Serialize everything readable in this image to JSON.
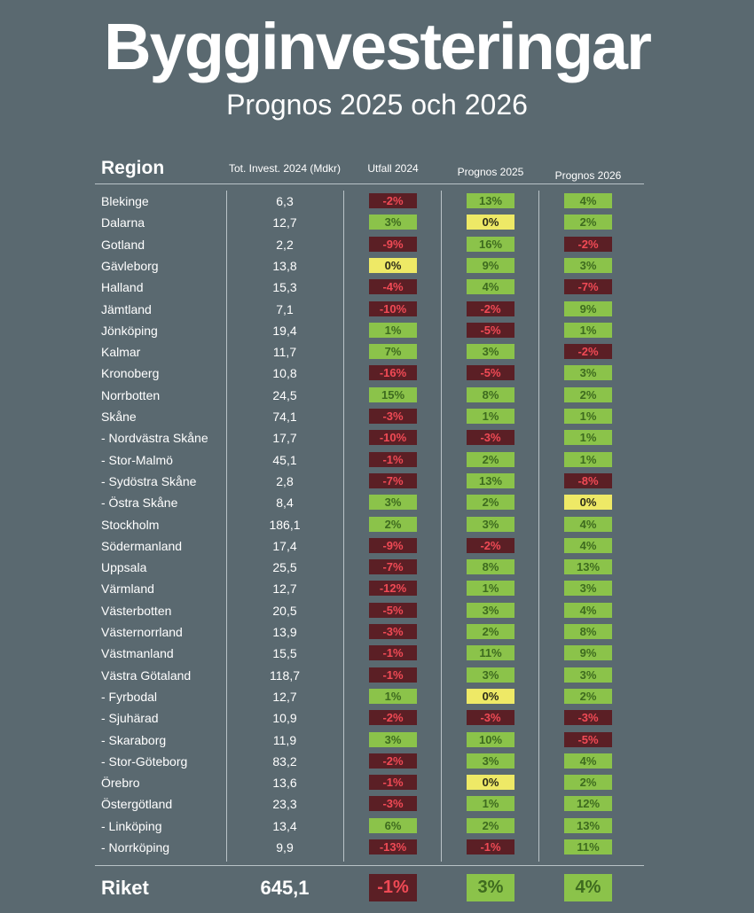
{
  "title": "Bygginvesteringar",
  "subtitle": "Prognos 2025 och 2026",
  "colors": {
    "background": "#5a6970",
    "negative": "#5b1f25",
    "negative_text": "#f04a55",
    "positive": "#8bc34a",
    "positive_text": "#3e6b1f",
    "zero": "#eee966"
  },
  "chart_data": {
    "type": "table",
    "columns": [
      "Region",
      "Tot. Invest. 2024 (Mdkr)",
      "Utfall 2024",
      "Prognos 2025",
      "Prognos 2026"
    ],
    "rows": [
      {
        "region": "Blekinge",
        "total": "6,3",
        "u2024": "-2%",
        "p2025": "13%",
        "p2026": "4%"
      },
      {
        "region": "Dalarna",
        "total": "12,7",
        "u2024": "3%",
        "p2025": "0%",
        "p2026": "2%"
      },
      {
        "region": "Gotland",
        "total": "2,2",
        "u2024": "-9%",
        "p2025": "16%",
        "p2026": "-2%"
      },
      {
        "region": "Gävleborg",
        "total": "13,8",
        "u2024": "0%",
        "p2025": "9%",
        "p2026": "3%"
      },
      {
        "region": "Halland",
        "total": "15,3",
        "u2024": "-4%",
        "p2025": "4%",
        "p2026": "-7%"
      },
      {
        "region": "Jämtland",
        "total": "7,1",
        "u2024": "-10%",
        "p2025": "-2%",
        "p2026": "9%"
      },
      {
        "region": "Jönköping",
        "total": "19,4",
        "u2024": "1%",
        "p2025": "-5%",
        "p2026": "1%"
      },
      {
        "region": "Kalmar",
        "total": "11,7",
        "u2024": "7%",
        "p2025": "3%",
        "p2026": "-2%"
      },
      {
        "region": "Kronoberg",
        "total": "10,8",
        "u2024": "-16%",
        "p2025": "-5%",
        "p2026": "3%"
      },
      {
        "region": "Norrbotten",
        "total": "24,5",
        "u2024": "15%",
        "p2025": "8%",
        "p2026": "2%"
      },
      {
        "region": "Skåne",
        "total": "74,1",
        "u2024": "-3%",
        "p2025": "1%",
        "p2026": "1%"
      },
      {
        "region": "- Nordvästra Skåne",
        "total": "17,7",
        "u2024": "-10%",
        "p2025": "-3%",
        "p2026": "1%"
      },
      {
        "region": "- Stor-Malmö",
        "total": "45,1",
        "u2024": "-1%",
        "p2025": "2%",
        "p2026": "1%"
      },
      {
        "region": "- Sydöstra Skåne",
        "total": "2,8",
        "u2024": "-7%",
        "p2025": "13%",
        "p2026": "-8%"
      },
      {
        "region": "- Östra Skåne",
        "total": "8,4",
        "u2024": "3%",
        "p2025": "2%",
        "p2026": "0%"
      },
      {
        "region": "Stockholm",
        "total": "186,1",
        "u2024": "2%",
        "p2025": "3%",
        "p2026": "4%"
      },
      {
        "region": "Södermanland",
        "total": "17,4",
        "u2024": "-9%",
        "p2025": "-2%",
        "p2026": "4%"
      },
      {
        "region": "Uppsala",
        "total": "25,5",
        "u2024": "-7%",
        "p2025": "8%",
        "p2026": "13%"
      },
      {
        "region": "Värmland",
        "total": "12,7",
        "u2024": "-12%",
        "p2025": "1%",
        "p2026": "3%"
      },
      {
        "region": "Västerbotten",
        "total": "20,5",
        "u2024": "-5%",
        "p2025": "3%",
        "p2026": "4%"
      },
      {
        "region": "Västernorrland",
        "total": "13,9",
        "u2024": "-3%",
        "p2025": "2%",
        "p2026": "8%"
      },
      {
        "region": "Västmanland",
        "total": "15,5",
        "u2024": "-1%",
        "p2025": "11%",
        "p2026": "9%"
      },
      {
        "region": "Västra Götaland",
        "total": "118,7",
        "u2024": "-1%",
        "p2025": "3%",
        "p2026": "3%"
      },
      {
        "region": "- Fyrbodal",
        "total": "12,7",
        "u2024": "1%",
        "p2025": "0%",
        "p2026": "2%"
      },
      {
        "region": "- Sjuhärad",
        "total": "10,9",
        "u2024": "-2%",
        "p2025": "-3%",
        "p2026": "-3%"
      },
      {
        "region": "- Skaraborg",
        "total": "11,9",
        "u2024": "3%",
        "p2025": "10%",
        "p2026": "-5%"
      },
      {
        "region": "- Stor-Göteborg",
        "total": "83,2",
        "u2024": "-2%",
        "p2025": "3%",
        "p2026": "4%"
      },
      {
        "region": "Örebro",
        "total": "13,6",
        "u2024": "-1%",
        "p2025": "0%",
        "p2026": "2%"
      },
      {
        "region": "Östergötland",
        "total": "23,3",
        "u2024": "-3%",
        "p2025": "1%",
        "p2026": "12%"
      },
      {
        "region": " - Linköping",
        "total": "13,4",
        "u2024": "6%",
        "p2025": "2%",
        "p2026": "13%"
      },
      {
        "region": " - Norrköping",
        "total": "9,9",
        "u2024": "-13%",
        "p2025": "-1%",
        "p2026": "11%"
      }
    ],
    "total": {
      "region": "Riket",
      "total": "645,1",
      "u2024": "-1%",
      "p2025": "3%",
      "p2026": "4%"
    }
  }
}
